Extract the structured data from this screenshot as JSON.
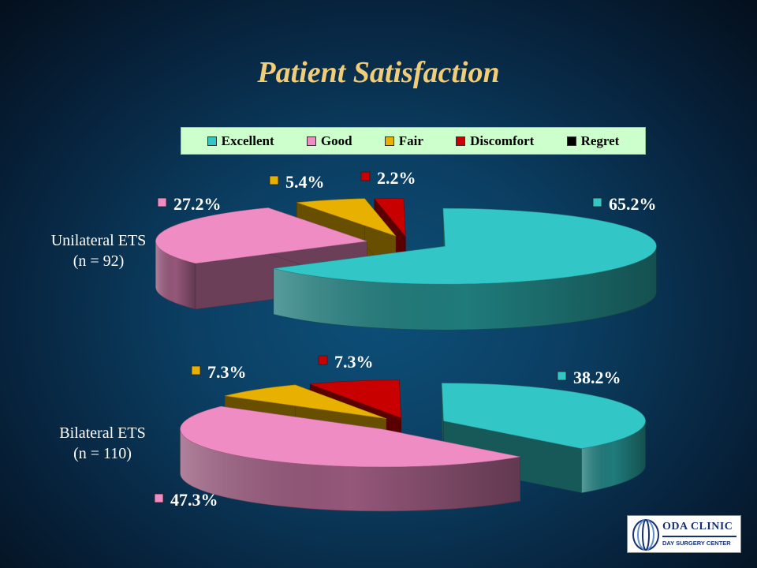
{
  "title": "Patient Satisfaction",
  "legend": [
    {
      "name": "Excellent",
      "color": "#33c6c6"
    },
    {
      "name": "Good",
      "color": "#f08cc4"
    },
    {
      "name": "Fair",
      "color": "#e8b000"
    },
    {
      "name": "Discomfort",
      "color": "#c80000"
    },
    {
      "name": "Regret",
      "color": "#000000"
    }
  ],
  "chart_data": [
    {
      "type": "pie",
      "group_label": [
        "Unilateral ETS",
        "(n = 92)"
      ],
      "categories": [
        "Excellent",
        "Good",
        "Fair",
        "Discomfort",
        "Regret"
      ],
      "values": [
        65.2,
        27.2,
        5.4,
        2.2,
        0
      ],
      "data_labels": [
        "65.2%",
        "27.2%",
        "5.4%",
        "2.2%",
        ""
      ],
      "legend_placement": "top"
    },
    {
      "type": "pie",
      "group_label": [
        "Bilateral ETS",
        "(n = 110)"
      ],
      "categories": [
        "Excellent",
        "Good",
        "Fair",
        "Discomfort",
        "Regret"
      ],
      "values": [
        38.2,
        47.3,
        7.3,
        7.3,
        0
      ],
      "data_labels": [
        "38.2%",
        "47.3%",
        "7.3%",
        "7.3%",
        ""
      ],
      "legend_placement": "top"
    }
  ],
  "logo": {
    "name": "ODA CLINIC",
    "subtitle": "DAY SURGERY CENTER"
  }
}
